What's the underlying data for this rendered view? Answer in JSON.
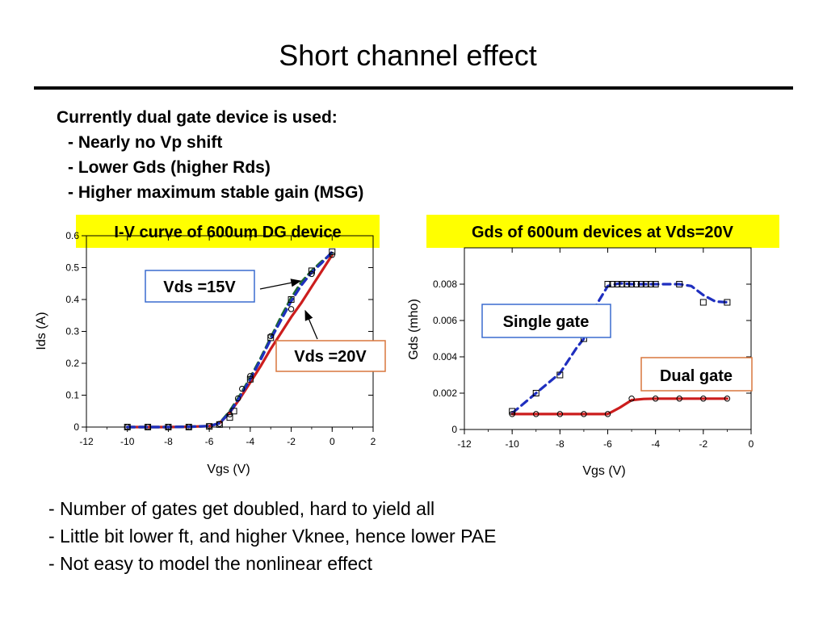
{
  "slide": {
    "title": "Short channel effect",
    "intro_heading": "Currently dual gate device is used:",
    "intro_items": [
      "- Nearly no Vp shift",
      "- Lower Gds (higher Rds)",
      "- Higher maximum stable gain (MSG)"
    ],
    "bottom_items": [
      "- Number of gates get doubled, hard to yield all",
      "- Little bit lower ft, and higher Vknee, hence lower PAE",
      "- Not easy to model the nonlinear effect"
    ]
  },
  "colors": {
    "banner_bg": "#ffff00",
    "callout_blue_border": "#3a6ccf",
    "callout_orange_border": "#d9773d",
    "red_curve": "#cc1d1d",
    "green_curve": "#1f6b2f",
    "blue_curve": "#1f2fbf"
  },
  "chart_data": [
    {
      "type": "line",
      "title": "I-V curve of 600um DG device",
      "xlabel": "Vgs (V)",
      "ylabel": "Ids (A)",
      "xlim": [
        -12,
        2
      ],
      "ylim": [
        0,
        0.6
      ],
      "xticks": [
        "-12",
        "-10",
        "-8",
        "-6",
        "-4",
        "-2",
        "0",
        "2"
      ],
      "yticks": [
        "0",
        "0.1",
        "0.2",
        "0.3",
        "0.4",
        "0.5",
        "0.6"
      ],
      "grid": false,
      "series": [
        {
          "name": "Vds =20V",
          "color": "#cc1d1d",
          "style": "solid",
          "x": [
            -10,
            -9,
            -8,
            -7,
            -6,
            -5.5,
            -5,
            -4.5,
            -4,
            -3.5,
            -3,
            -2.5,
            -2,
            -1.5,
            -1,
            -0.5,
            0
          ],
          "y": [
            0,
            0,
            0,
            0.001,
            0.003,
            0.012,
            0.045,
            0.09,
            0.14,
            0.19,
            0.245,
            0.295,
            0.345,
            0.39,
            0.44,
            0.49,
            0.54
          ]
        },
        {
          "name": "",
          "color": "#1f6b2f",
          "style": "dashed",
          "x": [
            -10,
            -9,
            -8,
            -7,
            -6,
            -5.5,
            -5,
            -4.5,
            -4,
            -3.5,
            -3,
            -2.5,
            -2,
            -1.5,
            -1,
            -0.5,
            0
          ],
          "y": [
            0,
            0,
            0,
            0.001,
            0.003,
            0.012,
            0.05,
            0.1,
            0.155,
            0.215,
            0.28,
            0.345,
            0.405,
            0.455,
            0.49,
            0.52,
            0.545
          ]
        },
        {
          "name": "Vds =15V",
          "color": "#1f2fbf",
          "style": "dashed",
          "x": [
            -10,
            -9,
            -8,
            -7,
            -6,
            -5.5,
            -5,
            -4.5,
            -4,
            -3.5,
            -3,
            -2.5,
            -2,
            -1.5,
            -1,
            -0.5,
            0
          ],
          "y": [
            0,
            0,
            0,
            0.001,
            0.003,
            0.012,
            0.045,
            0.095,
            0.15,
            0.21,
            0.275,
            0.335,
            0.395,
            0.445,
            0.485,
            0.515,
            0.55
          ]
        }
      ],
      "markers": {
        "squares": [
          [
            -10,
            0
          ],
          [
            -9,
            0
          ],
          [
            -8,
            0
          ],
          [
            -7,
            0
          ],
          [
            -6,
            0.002
          ],
          [
            -5.5,
            0.008
          ],
          [
            -5,
            0.03
          ],
          [
            -4.8,
            0.05
          ],
          [
            -4,
            0.15
          ],
          [
            -3,
            0.28
          ],
          [
            -2,
            0.4
          ],
          [
            -1,
            0.49
          ],
          [
            0,
            0.55
          ]
        ],
        "circles": [
          [
            -10,
            0
          ],
          [
            -9,
            0
          ],
          [
            -8,
            0
          ],
          [
            -7,
            0
          ],
          [
            -6,
            0.003
          ],
          [
            -5.5,
            0.01
          ],
          [
            -5,
            0.04
          ],
          [
            -4.6,
            0.09
          ],
          [
            -4.4,
            0.12
          ],
          [
            -4,
            0.16
          ],
          [
            -3,
            0.285
          ],
          [
            -2,
            0.37
          ],
          [
            -1,
            0.48
          ],
          [
            0,
            0.54
          ]
        ]
      },
      "annotations": [
        {
          "text": "Vds =15V",
          "border": "#3a6ccf"
        },
        {
          "text": "Vds =20V",
          "border": "#d9773d"
        }
      ]
    },
    {
      "type": "line",
      "title": "Gds of 600um devices at Vds=20V",
      "xlabel": "Vgs (V)",
      "ylabel": "Gds (mho)",
      "xlim": [
        -12,
        0
      ],
      "ylim": [
        0,
        0.01
      ],
      "xticks": [
        "-12",
        "-10",
        "-8",
        "-6",
        "-4",
        "-2",
        "0"
      ],
      "yticks": [
        "0",
        "0.002",
        "0.004",
        "0.006",
        "0.008"
      ],
      "grid": false,
      "series": [
        {
          "name": "Single gate",
          "color": "#1f2fbf",
          "style": "dashed",
          "x": [
            -10,
            -9,
            -8,
            -7.3,
            -7,
            -6.5,
            -6,
            -5.5,
            -5,
            -4.5,
            -4,
            -3.5,
            -3,
            -2.5,
            -2,
            -1.5,
            -1
          ],
          "y": [
            0.0009,
            0.002,
            0.0031,
            0.0045,
            0.005,
            0.0068,
            0.0079,
            0.00805,
            0.008,
            0.008,
            0.008,
            0.008,
            0.008,
            0.0079,
            0.0074,
            0.00705,
            0.007
          ]
        },
        {
          "name": "Dual gate",
          "color": "#cc1d1d",
          "style": "solid",
          "x": [
            -10,
            -9,
            -8,
            -7,
            -6,
            -5.5,
            -5,
            -4.5,
            -4,
            -3,
            -2,
            -1
          ],
          "y": [
            0.00085,
            0.00085,
            0.00085,
            0.00085,
            0.00085,
            0.0012,
            0.00162,
            0.00168,
            0.0017,
            0.0017,
            0.0017,
            0.0017
          ]
        }
      ],
      "markers": {
        "squares": [
          [
            -10,
            0.001
          ],
          [
            -9,
            0.002
          ],
          [
            -8,
            0.003
          ],
          [
            -7,
            0.005
          ],
          [
            -6,
            0.008
          ],
          [
            -5.8,
            0.008
          ],
          [
            -5.6,
            0.008
          ],
          [
            -5.4,
            0.008
          ],
          [
            -5.2,
            0.008
          ],
          [
            -5,
            0.008
          ],
          [
            -4.8,
            0.008
          ],
          [
            -4.6,
            0.008
          ],
          [
            -4.4,
            0.008
          ],
          [
            -4.2,
            0.008
          ],
          [
            -4,
            0.008
          ],
          [
            -3,
            0.008
          ],
          [
            -2,
            0.007
          ],
          [
            -1,
            0.007
          ]
        ],
        "circles": [
          [
            -10,
            0.00085
          ],
          [
            -9,
            0.00085
          ],
          [
            -8,
            0.00085
          ],
          [
            -7,
            0.00085
          ],
          [
            -6,
            0.00085
          ],
          [
            -5,
            0.0017
          ],
          [
            -4,
            0.0017
          ],
          [
            -3,
            0.0017
          ],
          [
            -2,
            0.0017
          ],
          [
            -1,
            0.0017
          ]
        ]
      },
      "annotations": [
        {
          "text": "Single gate",
          "border": "#3a6ccf"
        },
        {
          "text": "Dual gate",
          "border": "#d9773d"
        }
      ]
    }
  ]
}
